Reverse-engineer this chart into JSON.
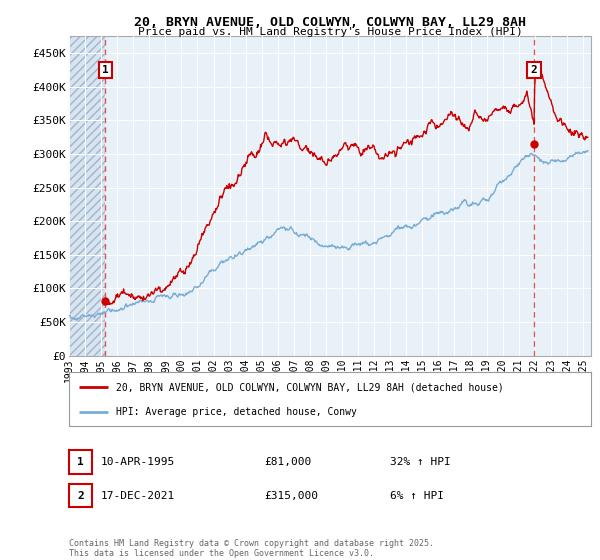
{
  "title": "20, BRYN AVENUE, OLD COLWYN, COLWYN BAY, LL29 8AH",
  "subtitle": "Price paid vs. HM Land Registry's House Price Index (HPI)",
  "hpi_label": "HPI: Average price, detached house, Conwy",
  "property_label": "20, BRYN AVENUE, OLD COLWYN, COLWYN BAY, LL29 8AH (detached house)",
  "red_color": "#cc0000",
  "blue_color": "#7aadd4",
  "dashed_color": "#dd4444",
  "annotation_box_color": "#cc0000",
  "bg_plot_color": "#e8f0f8",
  "transaction1_date": "10-APR-1995",
  "transaction1_price": "£81,000",
  "transaction1_hpi": "32% ↑ HPI",
  "transaction1_x": 1995.27,
  "transaction2_date": "17-DEC-2021",
  "transaction2_price": "£315,000",
  "transaction2_hpi": "6% ↑ HPI",
  "transaction2_x": 2021.96,
  "copyright_text": "Contains HM Land Registry data © Crown copyright and database right 2025.\nThis data is licensed under the Open Government Licence v3.0.",
  "ylim": [
    0,
    475000
  ],
  "xlim_start": 1993.0,
  "xlim_end": 2025.5,
  "yticks": [
    0,
    50000,
    100000,
    150000,
    200000,
    250000,
    300000,
    350000,
    400000,
    450000
  ],
  "ytick_labels": [
    "£0",
    "£50K",
    "£100K",
    "£150K",
    "£200K",
    "£250K",
    "£300K",
    "£350K",
    "£400K",
    "£450K"
  ],
  "xticks": [
    1993,
    1994,
    1995,
    1996,
    1997,
    1998,
    1999,
    2000,
    2001,
    2002,
    2003,
    2004,
    2005,
    2006,
    2007,
    2008,
    2009,
    2010,
    2011,
    2012,
    2013,
    2014,
    2015,
    2016,
    2017,
    2018,
    2019,
    2020,
    2021,
    2022,
    2023,
    2024,
    2025
  ]
}
